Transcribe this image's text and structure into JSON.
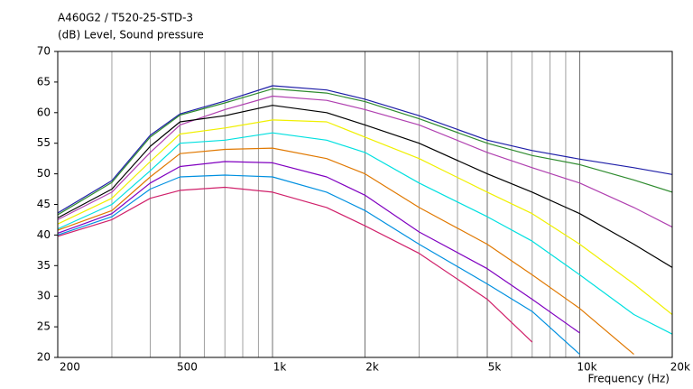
{
  "chart_data": {
    "type": "line",
    "title": "A460G2 / T520-25-STD-3",
    "ylabel": "(dB)  Level, Sound pressure",
    "xlabel": "Frequency  (Hz)",
    "xscale": "log",
    "xlim": [
      200,
      20000
    ],
    "ylim": [
      20,
      70
    ],
    "xticks": [
      {
        "value": 200,
        "label": "200"
      },
      {
        "value": 500,
        "label": "500"
      },
      {
        "value": 1000,
        "label": "1k"
      },
      {
        "value": 2000,
        "label": "2k"
      },
      {
        "value": 5000,
        "label": "5k"
      },
      {
        "value": 10000,
        "label": "10k"
      },
      {
        "value": 20000,
        "label": "20k"
      }
    ],
    "xgrid": [
      300,
      400,
      600,
      700,
      800,
      900,
      3000,
      4000,
      6000,
      7000,
      8000,
      9000
    ],
    "yticks": [
      20,
      25,
      30,
      35,
      40,
      45,
      50,
      55,
      60,
      65,
      70
    ],
    "grid": "x",
    "x": [
      200,
      300,
      400,
      500,
      700,
      1000,
      1500,
      2000,
      3000,
      5000,
      7000,
      10000,
      15000,
      20000
    ],
    "series": [
      {
        "color": "#1f1fa8",
        "values": [
          43.6,
          48.9,
          56.3,
          59.8,
          61.9,
          64.4,
          63.7,
          62.2,
          59.5,
          55.5,
          53.8,
          52.4,
          51,
          49.9
        ]
      },
      {
        "color": "#2e8b2e",
        "values": [
          43.3,
          48.6,
          56,
          59.6,
          61.6,
          63.9,
          63.2,
          61.8,
          59,
          55,
          53,
          51.5,
          49,
          47
        ]
      },
      {
        "color": "#b040b0",
        "values": [
          42.5,
          47,
          53.5,
          58,
          60.5,
          62.7,
          62,
          60.5,
          58,
          53.5,
          51,
          48.5,
          44.5,
          41.3
        ]
      },
      {
        "color": "#000000",
        "values": [
          42.8,
          47.5,
          54.5,
          58.5,
          59.5,
          61.2,
          60,
          58,
          55,
          50,
          47,
          43.5,
          38.5,
          34.7
        ]
      },
      {
        "color": "#f0f000",
        "values": [
          41.8,
          46,
          52,
          56.5,
          57.5,
          58.8,
          58.5,
          56,
          52.5,
          47,
          43.5,
          38.5,
          32,
          27
        ]
      },
      {
        "color": "#00e0e0",
        "values": [
          41,
          45,
          50.5,
          55,
          55.5,
          56.7,
          55.5,
          53.5,
          48.5,
          43,
          39,
          33.5,
          27,
          23.8
        ]
      },
      {
        "color": "#e07800",
        "values": [
          40.8,
          44,
          49.5,
          53.3,
          54,
          54.2,
          52.5,
          50,
          44.5,
          38.5,
          33.5,
          28,
          20.5,
          null
        ]
      },
      {
        "color": "#8000c0",
        "values": [
          40.3,
          43.5,
          48.5,
          51.2,
          52,
          51.8,
          49.5,
          46.5,
          40.5,
          34.5,
          29.5,
          24,
          null,
          null
        ]
      },
      {
        "color": "#0090e0",
        "values": [
          40,
          43,
          47.5,
          49.5,
          49.8,
          49.5,
          47,
          44,
          38.5,
          32,
          27.5,
          20.5,
          null,
          null
        ]
      },
      {
        "color": "#d0206a",
        "values": [
          39.8,
          42.5,
          46,
          47.3,
          47.8,
          47,
          44.5,
          41.5,
          37,
          29.5,
          22.5,
          null,
          null,
          null
        ]
      }
    ]
  }
}
